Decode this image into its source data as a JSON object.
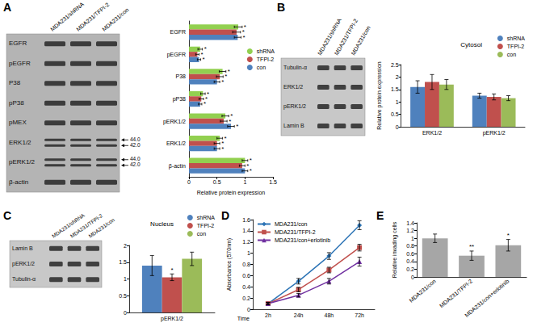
{
  "panel_labels": [
    "A",
    "B",
    "C",
    "D",
    "E"
  ],
  "blots": [
    {
      "columns": [
        "MDA231/shRNA",
        "MDA231/TFPI-2",
        "MDA231/con"
      ],
      "rows": [
        "EGFR",
        "pEGFR",
        "P38",
        "pP38",
        "pMEX",
        "ERK1/2",
        "pERK1/2",
        "β-actin"
      ],
      "size_markers": {
        "ERK1/2": [
          "44.0",
          "42.0"
        ],
        "pERK1/2": [
          "44.0",
          "42.0"
        ]
      }
    },
    {
      "columns": [
        "MDA231/shRNA",
        "MDA231/TFPI-2",
        "MDA231/con"
      ],
      "rows": [
        "Tubulin-α",
        "ERK1/2",
        "pERK1/2",
        "Lamin B"
      ]
    },
    {
      "columns": [
        "MDA231/shRNA",
        "MDA231/TFPI-2",
        "MDA231/con"
      ],
      "rows": [
        "Lamin B",
        "pERK1/2",
        "Tubulin-α"
      ]
    }
  ],
  "chart_data": [
    {
      "type": "bar",
      "orientation": "horizontal",
      "categories": [
        "EGFR",
        "pEGFR",
        "P38",
        "pP38",
        "pERK1/2",
        "ERK1/2",
        "β-actin"
      ],
      "xlabel": "Relative protein expression",
      "xlim": [
        0,
        1.5
      ],
      "xticks": [
        0,
        0.5,
        1,
        1.5
      ],
      "grid": false,
      "legend": "top-right",
      "series": [
        {
          "name": "shRNA",
          "color": "#92d050",
          "values": [
            0.88,
            0.2,
            0.6,
            0.25,
            0.65,
            0.55,
            1.0
          ],
          "errors": [
            0.07,
            0.04,
            0.06,
            0.04,
            0.06,
            0.05,
            0.05
          ],
          "annotations": [
            "*",
            "*",
            "*",
            "*",
            "*",
            "*",
            "*"
          ]
        },
        {
          "name": "TFPI-2",
          "color": "#c0504d",
          "values": [
            0.85,
            0.15,
            0.55,
            0.22,
            0.62,
            0.5,
            0.95
          ],
          "errors": [
            0.07,
            0.03,
            0.06,
            0.04,
            0.06,
            0.05,
            0.05
          ],
          "annotations": [
            "*",
            "*",
            "*",
            "*",
            "*",
            "*",
            "*"
          ]
        },
        {
          "name": "con",
          "color": "#4f81bd",
          "values": [
            0.87,
            0.18,
            0.5,
            0.2,
            0.75,
            0.5,
            1.0
          ],
          "errors": [
            0.06,
            0.03,
            0.05,
            0.03,
            0.06,
            0.05,
            0.05
          ],
          "annotations": [
            "*",
            "*",
            "*",
            "*",
            "*",
            "*",
            "*"
          ]
        }
      ]
    },
    {
      "type": "bar",
      "title": "Cytosol",
      "categories": [
        "ERK1/2",
        "pERK1/2"
      ],
      "ylabel": "Relative protein expression",
      "ylim": [
        0,
        2.5
      ],
      "yticks": [
        0,
        0.5,
        1,
        1.5,
        2,
        2.5
      ],
      "grid": false,
      "legend": "top-right",
      "series": [
        {
          "name": "shRNA",
          "color": "#4f81bd",
          "values": [
            1.6,
            1.25
          ],
          "errors": [
            0.25,
            0.1
          ]
        },
        {
          "name": "TFPI-2",
          "color": "#c0504d",
          "values": [
            1.8,
            1.2
          ],
          "errors": [
            0.3,
            0.12
          ]
        },
        {
          "name": "con",
          "color": "#9bbb59",
          "values": [
            1.7,
            1.15
          ],
          "errors": [
            0.2,
            0.1
          ]
        }
      ]
    },
    {
      "type": "bar",
      "title": "Nucleus",
      "categories": [
        "pERK1/2"
      ],
      "ylim": [
        0,
        2
      ],
      "yticks": [
        0,
        0.5,
        1,
        1.5,
        2
      ],
      "grid": false,
      "legend": "top-right",
      "series": [
        {
          "name": "shRNA",
          "color": "#4f81bd",
          "values": [
            1.4
          ],
          "errors": [
            0.3
          ]
        },
        {
          "name": "TFPI-2",
          "color": "#c0504d",
          "values": [
            1.05
          ],
          "errors": [
            0.1
          ],
          "annotations": [
            "*"
          ]
        },
        {
          "name": "con",
          "color": "#9bbb59",
          "values": [
            1.6
          ],
          "errors": [
            0.2
          ]
        }
      ]
    },
    {
      "type": "line",
      "categories": [
        "2h",
        "24h",
        "48h",
        "72h"
      ],
      "xlabel": "Time",
      "ylabel": "Absorbance (570nm)",
      "ylim": [
        0,
        1.6
      ],
      "yticks": [
        0,
        0.2,
        0.4,
        0.6,
        0.8,
        1,
        1.2,
        1.4,
        1.6
      ],
      "grid": false,
      "legend": "top-left",
      "series": [
        {
          "name": "MDA231/con",
          "color": "#2e75b6",
          "marker": "diamond",
          "values": [
            0.1,
            0.5,
            0.95,
            1.5
          ],
          "errors": [
            0.02,
            0.05,
            0.06,
            0.08
          ]
        },
        {
          "name": "MDA231/TFPI-2",
          "color": "#c0504d",
          "marker": "square",
          "values": [
            0.1,
            0.35,
            0.7,
            1.1
          ],
          "errors": [
            0.02,
            0.04,
            0.05,
            0.06
          ]
        },
        {
          "name": "MDA231/con+erlotinib",
          "color": "#7030a0",
          "marker": "triangle",
          "values": [
            0.1,
            0.25,
            0.5,
            0.85
          ],
          "errors": [
            0.02,
            0.03,
            0.05,
            0.08
          ]
        }
      ]
    },
    {
      "type": "bar",
      "categories": [
        "MDA231/con",
        "MDA231/TFPI-2",
        "MDA231/con+erlotinib"
      ],
      "ylabel": "Relative invading cells",
      "ylim": [
        0,
        1.4
      ],
      "yticks": [
        0,
        0.2,
        0.4,
        0.6,
        0.8,
        1,
        1.2,
        1.4
      ],
      "grid": false,
      "color": "#a6a6a6",
      "values": [
        1.0,
        0.55,
        0.82
      ],
      "errors": [
        0.11,
        0.12,
        0.15
      ],
      "annotations": [
        null,
        "**",
        "*"
      ]
    }
  ]
}
